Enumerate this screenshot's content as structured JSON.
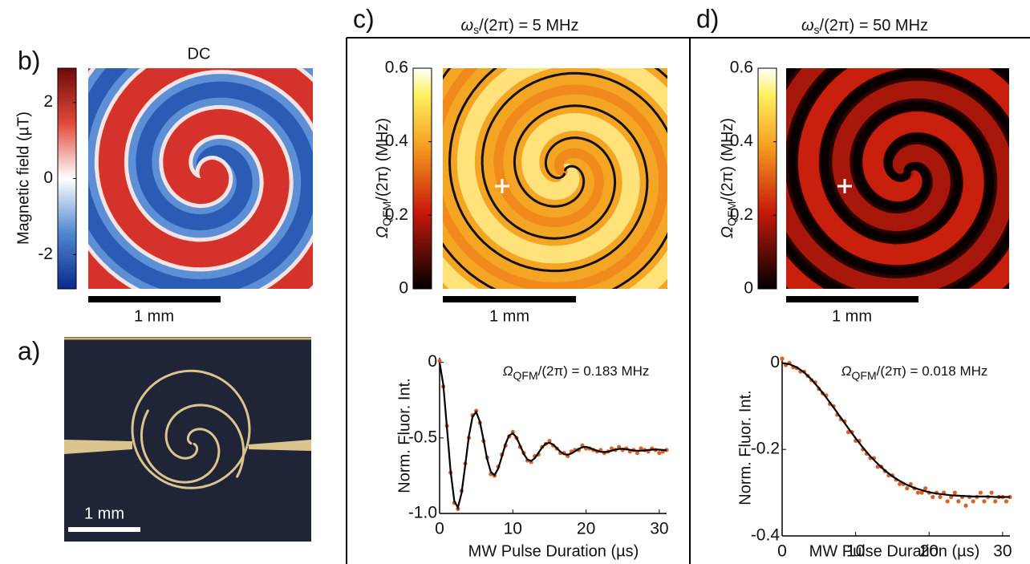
{
  "chart_data": [
    {
      "type": "colormap",
      "panel": "b)",
      "title": "DC",
      "colorbar_label": "Magnetic field (µT)",
      "colormap": "bwr",
      "ylim": [
        -2.9,
        2.9
      ],
      "yticks": [
        -2,
        0,
        2
      ],
      "scale_bar": "1 mm"
    },
    {
      "type": "photo",
      "panel": "a)",
      "scale_bar": "1 mm"
    },
    {
      "type": "colormap",
      "panel": "c)",
      "title": [
        "ω",
        "s",
        "/(2π) = 5 MHz"
      ],
      "colorbar_label": [
        "Ω",
        "QFM",
        "/(2π) (MHz)"
      ],
      "colormap": "hot",
      "ylim": [
        0,
        0.6
      ],
      "yticks": [
        0,
        0.2,
        0.4,
        0.6
      ],
      "scale_bar": "1 mm"
    },
    {
      "type": "scatter",
      "annotation": [
        "Ω",
        "QFM",
        "/(2π) = 0.183 MHz"
      ],
      "xlabel": "MW Pulse Duration (µs)",
      "ylabel": "Norm. Fluor. Int.",
      "xlim": [
        0,
        31
      ],
      "ylim": [
        -1,
        0.03
      ],
      "xticks": [
        0,
        10,
        20,
        30
      ],
      "yticks": [
        0,
        -0.5,
        {
          "value": -1,
          "label": "-1.0"
        }
      ],
      "series": [
        {
          "type": "scatter",
          "color": "#d9622b",
          "x": [
            0,
            0.5,
            1,
            1.5,
            2,
            2.5,
            3,
            3.5,
            4,
            4.5,
            5,
            5.5,
            6,
            6.5,
            7,
            7.5,
            8,
            8.5,
            9,
            9.5,
            10,
            10.5,
            11,
            11.5,
            12,
            12.5,
            13,
            13.5,
            14,
            14.5,
            15,
            15.5,
            16,
            16.5,
            17,
            17.5,
            18,
            18.5,
            19,
            19.5,
            20,
            20.5,
            21,
            21.5,
            22,
            22.5,
            23,
            23.5,
            24,
            24.5,
            25,
            25.5,
            26,
            26.5,
            27,
            27.5,
            28,
            28.5,
            29,
            29.5,
            30,
            30.5,
            31
          ],
          "values": [
            0.01,
            -0.16,
            -0.42,
            -0.73,
            -0.93,
            -0.97,
            -0.85,
            -0.67,
            -0.5,
            -0.35,
            -0.32,
            -0.4,
            -0.52,
            -0.63,
            -0.74,
            -0.75,
            -0.69,
            -0.61,
            -0.55,
            -0.49,
            -0.46,
            -0.5,
            -0.56,
            -0.6,
            -0.65,
            -0.66,
            -0.62,
            -0.61,
            -0.56,
            -0.54,
            -0.52,
            -0.55,
            -0.57,
            -0.6,
            -0.6,
            -0.62,
            -0.59,
            -0.58,
            -0.58,
            -0.55,
            -0.57,
            -0.57,
            -0.58,
            -0.59,
            -0.58,
            -0.6,
            -0.59,
            -0.57,
            -0.58,
            -0.56,
            -0.58,
            -0.57,
            -0.59,
            -0.58,
            -0.6,
            -0.57,
            -0.58,
            -0.59,
            -0.57,
            -0.58,
            -0.6,
            -0.59,
            -0.58
          ]
        },
        {
          "type": "line",
          "color": "#000000",
          "x": [
            0,
            0.5,
            1,
            1.5,
            2,
            2.5,
            3,
            3.5,
            4,
            4.5,
            5,
            5.5,
            6,
            6.5,
            7,
            7.5,
            8,
            8.5,
            9,
            9.5,
            10,
            10.5,
            11,
            11.5,
            12,
            12.5,
            13,
            13.5,
            14,
            14.5,
            15,
            15.5,
            16,
            16.5,
            17,
            17.5,
            18,
            18.5,
            19,
            19.5,
            20,
            20.5,
            21,
            21.5,
            22,
            22.5,
            23,
            23.5,
            24,
            24.5,
            25,
            25.5,
            26,
            26.5,
            27,
            27.5,
            28,
            28.5,
            29,
            29.5,
            30,
            30.5,
            31
          ],
          "values": [
            0,
            -0.148,
            -0.428,
            -0.72,
            -0.916,
            -0.962,
            -0.865,
            -0.68,
            -0.488,
            -0.359,
            -0.328,
            -0.392,
            -0.514,
            -0.641,
            -0.726,
            -0.746,
            -0.704,
            -0.624,
            -0.54,
            -0.484,
            -0.47,
            -0.498,
            -0.551,
            -0.606,
            -0.643,
            -0.652,
            -0.634,
            -0.599,
            -0.563,
            -0.538,
            -0.532,
            -0.544,
            -0.568,
            -0.591,
            -0.608,
            -0.611,
            -0.603,
            -0.588,
            -0.572,
            -0.562,
            -0.559,
            -0.566,
            -0.576,
            -0.585,
            -0.592,
            -0.594,
            -0.591,
            -0.585,
            -0.578,
            -0.573,
            -0.572,
            -0.575,
            -0.579,
            -0.583,
            -0.585,
            -0.585,
            -0.583,
            -0.58,
            -0.578,
            -0.577,
            -0.578,
            -0.58,
            -0.581
          ]
        }
      ]
    },
    {
      "type": "colormap",
      "panel": "d)",
      "title": [
        "ω",
        "s",
        "/(2π) = 50 MHz"
      ],
      "colorbar_label": [
        "Ω",
        "QFM",
        "/(2π) (MHz)"
      ],
      "colormap": "hot",
      "ylim": [
        0,
        0.6
      ],
      "yticks": [
        0,
        0.2,
        0.4,
        0.6
      ],
      "scale_bar": "1 mm"
    },
    {
      "type": "scatter",
      "annotation": [
        "Ω",
        "QFM",
        "/(2π) = 0.018 MHz"
      ],
      "xlabel": "MW Pulse Duration (µs)",
      "ylabel": "Norm. Fluor. Int.",
      "xlim": [
        0,
        31
      ],
      "ylim": [
        -0.4,
        0.01
      ],
      "xticks": [
        0,
        10,
        20,
        30
      ],
      "yticks": [
        0,
        -0.2,
        -0.4
      ],
      "series": [
        {
          "type": "scatter",
          "color": "#d9622b",
          "x": [
            0,
            0.5,
            1,
            1.5,
            2,
            2.5,
            3,
            3.5,
            4,
            4.5,
            5,
            5.5,
            6,
            6.5,
            7,
            7.5,
            8,
            8.5,
            9,
            9.5,
            10,
            10.5,
            11,
            11.5,
            12,
            12.5,
            13,
            13.5,
            14,
            14.5,
            15,
            15.5,
            16,
            16.5,
            17,
            17.5,
            18,
            18.5,
            19,
            19.5,
            20,
            20.5,
            21,
            21.5,
            22,
            22.5,
            23,
            23.5,
            24,
            24.5,
            25,
            25.5,
            26,
            26.5,
            27,
            27.5,
            28,
            28.5,
            29,
            29.5,
            30,
            30.5,
            31
          ],
          "values": [
            0.01,
            -0.005,
            0,
            -0.01,
            -0.012,
            -0.02,
            -0.02,
            -0.03,
            -0.04,
            -0.045,
            -0.06,
            -0.07,
            -0.075,
            -0.095,
            -0.1,
            -0.12,
            -0.13,
            -0.135,
            -0.16,
            -0.16,
            -0.18,
            -0.18,
            -0.2,
            -0.21,
            -0.22,
            -0.22,
            -0.24,
            -0.24,
            -0.25,
            -0.26,
            -0.26,
            -0.27,
            -0.28,
            -0.28,
            -0.29,
            -0.28,
            -0.29,
            -0.3,
            -0.3,
            -0.29,
            -0.3,
            -0.31,
            -0.3,
            -0.31,
            -0.3,
            -0.32,
            -0.31,
            -0.3,
            -0.32,
            -0.31,
            -0.33,
            -0.31,
            -0.32,
            -0.31,
            -0.3,
            -0.32,
            -0.31,
            -0.3,
            -0.32,
            -0.31,
            -0.31,
            -0.32,
            -0.31
          ]
        },
        {
          "type": "line",
          "color": "#000000",
          "x": [
            0,
            1,
            2,
            3,
            4,
            5,
            6,
            7,
            8,
            9,
            10,
            11,
            12,
            13,
            14,
            15,
            16,
            17,
            18,
            19,
            20,
            21,
            22,
            23,
            24,
            25,
            26,
            27,
            28,
            29,
            30,
            31
          ],
          "values": [
            0,
            -0.003,
            -0.01,
            -0.022,
            -0.038,
            -0.058,
            -0.08,
            -0.103,
            -0.127,
            -0.151,
            -0.174,
            -0.196,
            -0.216,
            -0.233,
            -0.249,
            -0.262,
            -0.273,
            -0.282,
            -0.289,
            -0.294,
            -0.299,
            -0.302,
            -0.304,
            -0.306,
            -0.307,
            -0.308,
            -0.309,
            -0.309,
            -0.309,
            -0.31,
            -0.31,
            -0.31
          ]
        }
      ]
    }
  ]
}
